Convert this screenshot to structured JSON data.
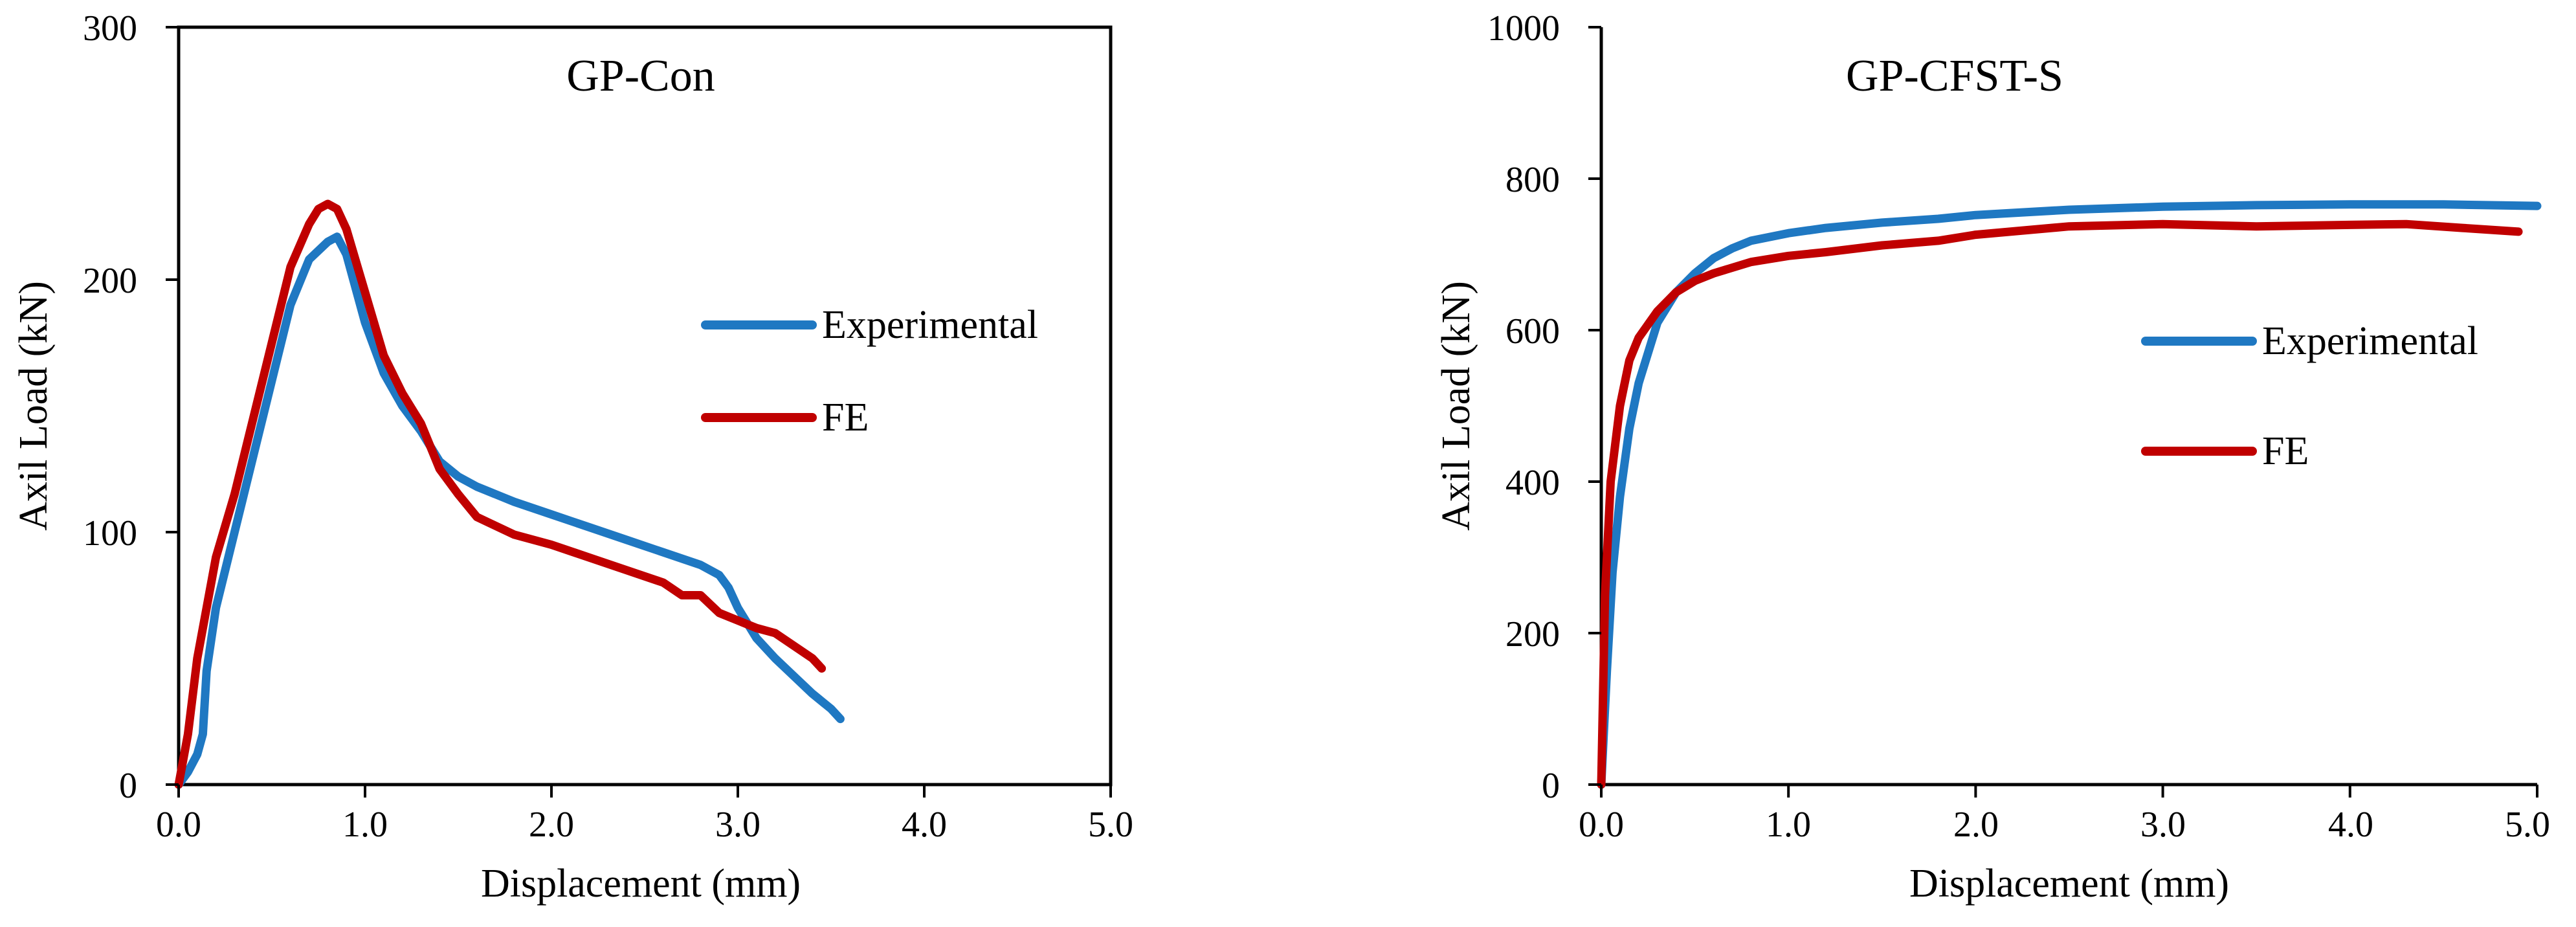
{
  "chart_data": [
    {
      "type": "line",
      "title": "GP-Con",
      "xlabel": "Displacement  (mm)",
      "ylabel": "Axil Load (kN)",
      "xlim": [
        0,
        5
      ],
      "ylim": [
        0,
        300
      ],
      "x_ticks": [
        0,
        1,
        2,
        3,
        4,
        5
      ],
      "x_tick_labels": [
        "0.0",
        "1.0",
        "2.0",
        "3.0",
        "4.0",
        "5.0"
      ],
      "y_ticks": [
        0,
        100,
        200,
        300
      ],
      "y_tick_labels": [
        "0",
        "100",
        "200",
        "300"
      ],
      "grid": false,
      "legend_position": "right",
      "series": [
        {
          "name": "Experimental",
          "color": "#1f78c2",
          "x": [
            0.0,
            0.05,
            0.1,
            0.13,
            0.15,
            0.2,
            0.3,
            0.4,
            0.5,
            0.6,
            0.7,
            0.8,
            0.85,
            0.9,
            1.0,
            1.1,
            1.2,
            1.3,
            1.4,
            1.5,
            1.6,
            1.8,
            2.0,
            2.2,
            2.4,
            2.6,
            2.8,
            2.9,
            2.95,
            3.0,
            3.1,
            3.2,
            3.3,
            3.4,
            3.5,
            3.55
          ],
          "y": [
            0,
            5,
            12,
            20,
            45,
            70,
            100,
            130,
            160,
            190,
            208,
            215,
            217,
            210,
            183,
            163,
            150,
            140,
            128,
            122,
            118,
            112,
            107,
            102,
            97,
            92,
            87,
            83,
            78,
            70,
            58,
            50,
            43,
            36,
            30,
            26
          ]
        },
        {
          "name": "FE",
          "color": "#c00000",
          "x": [
            0.0,
            0.05,
            0.1,
            0.15,
            0.2,
            0.3,
            0.4,
            0.5,
            0.6,
            0.7,
            0.75,
            0.8,
            0.85,
            0.9,
            1.0,
            1.1,
            1.2,
            1.3,
            1.4,
            1.5,
            1.6,
            1.8,
            2.0,
            2.2,
            2.4,
            2.6,
            2.7,
            2.8,
            2.9,
            3.0,
            3.1,
            3.2,
            3.3,
            3.4,
            3.45
          ],
          "y": [
            0,
            20,
            50,
            70,
            90,
            115,
            145,
            175,
            205,
            222,
            228,
            230,
            228,
            220,
            195,
            170,
            155,
            143,
            125,
            115,
            106,
            99,
            95,
            90,
            85,
            80,
            75,
            75,
            68,
            65,
            62,
            60,
            55,
            50,
            46
          ]
        }
      ]
    },
    {
      "type": "line",
      "title": "GP-CFST-S",
      "xlabel": "Displacement  (mm)",
      "ylabel": "Axil Load (kN)",
      "xlim": [
        0,
        5
      ],
      "ylim": [
        0,
        1000
      ],
      "x_ticks": [
        0,
        1,
        2,
        3,
        4,
        5
      ],
      "x_tick_labels": [
        "0.0",
        "1.0",
        "2.0",
        "3.0",
        "4.0",
        "5.0"
      ],
      "y_ticks": [
        0,
        200,
        400,
        600,
        800,
        1000
      ],
      "y_tick_labels": [
        "0",
        "200",
        "400",
        "600",
        "800",
        "1000"
      ],
      "grid": false,
      "legend_position": "right",
      "series": [
        {
          "name": "Experimental",
          "color": "#1f78c2",
          "x": [
            0.0,
            0.03,
            0.06,
            0.1,
            0.15,
            0.2,
            0.3,
            0.4,
            0.5,
            0.6,
            0.7,
            0.8,
            1.0,
            1.2,
            1.5,
            1.8,
            2.0,
            2.5,
            3.0,
            3.5,
            4.0,
            4.5,
            5.0
          ],
          "y": [
            0,
            150,
            280,
            380,
            470,
            530,
            610,
            650,
            675,
            695,
            708,
            718,
            728,
            735,
            742,
            747,
            752,
            759,
            763,
            765,
            766,
            766,
            764
          ]
        },
        {
          "name": "FE",
          "color": "#c00000",
          "x": [
            0.0,
            0.02,
            0.05,
            0.1,
            0.15,
            0.2,
            0.3,
            0.4,
            0.5,
            0.6,
            0.8,
            1.0,
            1.2,
            1.5,
            1.8,
            2.0,
            2.5,
            3.0,
            3.5,
            4.0,
            4.3,
            4.6,
            4.9
          ],
          "y": [
            0,
            250,
            400,
            500,
            560,
            590,
            625,
            650,
            665,
            675,
            690,
            698,
            703,
            712,
            718,
            726,
            737,
            740,
            737,
            739,
            740,
            735,
            730
          ]
        }
      ]
    }
  ]
}
